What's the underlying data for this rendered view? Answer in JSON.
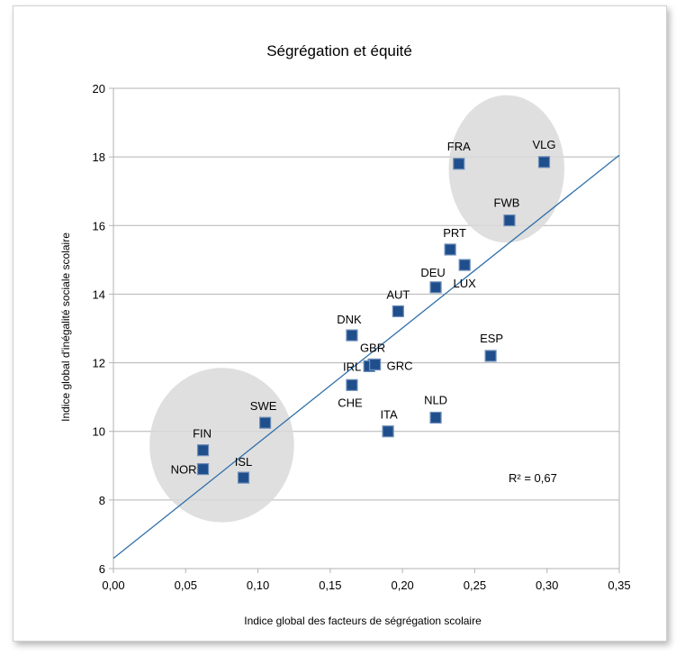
{
  "chart_data": {
    "type": "scatter",
    "title": "Ségrégation et équité",
    "xlabel": "Indice global des facteurs de ségrégation scolaire",
    "ylabel": "Indice global d'inégalité sociale scolaire",
    "xlim": [
      0,
      0.35
    ],
    "ylim": [
      6,
      20
    ],
    "x_ticks": [
      0,
      0.05,
      0.1,
      0.15,
      0.2,
      0.25,
      0.3,
      0.35
    ],
    "x_tick_labels": [
      "0,00",
      "0,05",
      "0,10",
      "0,15",
      "0,20",
      "0,25",
      "0,30",
      "0,35"
    ],
    "y_ticks": [
      6,
      8,
      10,
      12,
      14,
      16,
      18,
      20
    ],
    "y_tick_labels": [
      "6",
      "8",
      "10",
      "12",
      "14",
      "16",
      "18",
      "20"
    ],
    "grid": "horizontal",
    "marker_color": "#1f4e8c",
    "points": [
      {
        "label": "FRA",
        "x": 0.239,
        "y": 17.8
      },
      {
        "label": "VLG",
        "x": 0.298,
        "y": 17.85
      },
      {
        "label": "FWB",
        "x": 0.274,
        "y": 16.15
      },
      {
        "label": "PRT",
        "x": 0.233,
        "y": 15.3
      },
      {
        "label": "LUX",
        "x": 0.243,
        "y": 14.85
      },
      {
        "label": "DEU",
        "x": 0.223,
        "y": 14.2
      },
      {
        "label": "AUT",
        "x": 0.197,
        "y": 13.5
      },
      {
        "label": "DNK",
        "x": 0.165,
        "y": 12.8
      },
      {
        "label": "ESP",
        "x": 0.261,
        "y": 12.2
      },
      {
        "label": "GBR",
        "x": 0.18,
        "y": 11.95
      },
      {
        "label": "IRL",
        "x": 0.177,
        "y": 11.9
      },
      {
        "label": "GRC",
        "x": 0.181,
        "y": 11.95
      },
      {
        "label": "CHE",
        "x": 0.165,
        "y": 11.35
      },
      {
        "label": "NLD",
        "x": 0.223,
        "y": 10.4
      },
      {
        "label": "SWE",
        "x": 0.105,
        "y": 10.25
      },
      {
        "label": "ITA",
        "x": 0.19,
        "y": 10.0
      },
      {
        "label": "FIN",
        "x": 0.062,
        "y": 9.45
      },
      {
        "label": "NOR",
        "x": 0.062,
        "y": 8.9
      },
      {
        "label": "ISL",
        "x": 0.09,
        "y": 8.65
      }
    ],
    "trendline": {
      "x0": 0,
      "y0": 6.3,
      "x1": 0.35,
      "y1": 18.05,
      "color": "#2e6faa"
    },
    "r_squared_label": "R² = 0,67",
    "highlight_groups": [
      {
        "name": "high-segregation-group",
        "cx": 0.272,
        "cy": 17.65,
        "rx": 0.04,
        "ry": 2.15
      },
      {
        "name": "low-segregation-group",
        "cx": 0.075,
        "cy": 9.6,
        "rx": 0.05,
        "ry": 2.25
      }
    ]
  }
}
